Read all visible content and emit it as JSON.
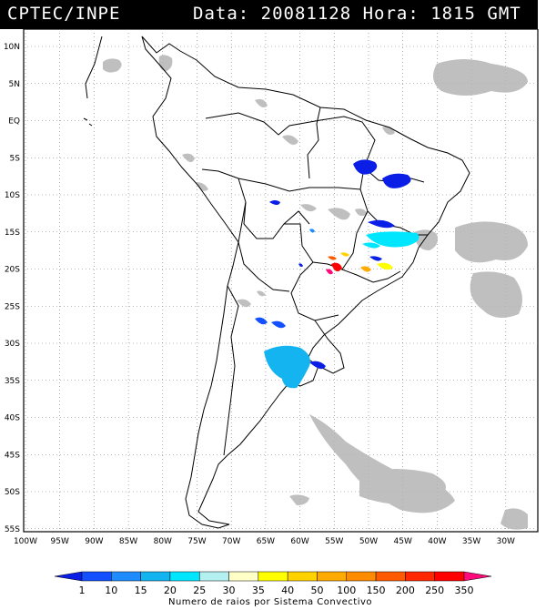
{
  "header": {
    "agency": "CPTEC/INPE",
    "timestamp": "Data: 20081128 Hora: 1815 GMT"
  },
  "axes": {
    "lat_labels": [
      "10N",
      "5N",
      "EQ",
      "5S",
      "10S",
      "15S",
      "20S",
      "25S",
      "30S",
      "35S",
      "40S",
      "45S",
      "50S",
      "55S"
    ],
    "lon_labels": [
      "100W",
      "95W",
      "90W",
      "85W",
      "80W",
      "75W",
      "70W",
      "65W",
      "60W",
      "55W",
      "50W",
      "45W",
      "40W",
      "35W",
      "30W"
    ]
  },
  "colorbar": {
    "title": "Numero de raios por Sistema Convectivo",
    "tick_labels": [
      "1",
      "10",
      "15",
      "20",
      "25",
      "30",
      "35",
      "40",
      "50",
      "100",
      "150",
      "200",
      "250",
      "350"
    ],
    "colors": [
      "#0a1ee6",
      "#1450ff",
      "#1e8cff",
      "#14b4f0",
      "#00e6ff",
      "#b4f0f0",
      "#ffffc8",
      "#ffff00",
      "#ffd200",
      "#ffaa00",
      "#ff8c00",
      "#ff5a00",
      "#ff2800",
      "#ff0000",
      "#ff0a7a"
    ]
  },
  "colors": {
    "cloud_gray": "#b4b4b4",
    "coast": "#000000",
    "grid": "#777777"
  }
}
